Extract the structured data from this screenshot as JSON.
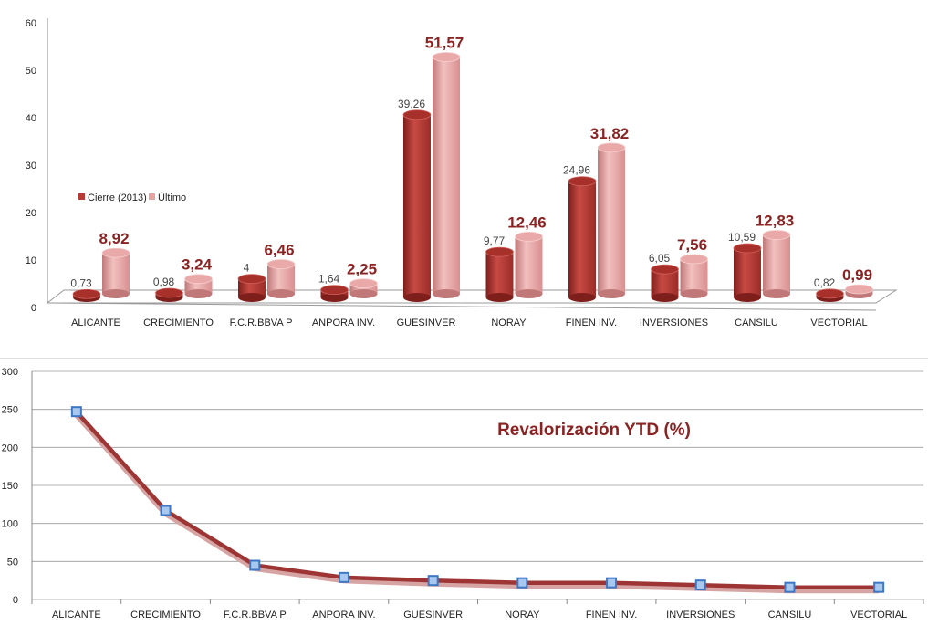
{
  "chart_data": [
    {
      "type": "bar",
      "title": "",
      "categories": [
        "ALICANTE",
        "CRECIMIENTO",
        "F.C.R.BBVA P",
        "ANPORA INV.",
        "GUESINVER",
        "NORAY",
        "FINEN INV.",
        "INVERSIONES",
        "CANSILU",
        "VECTORIAL"
      ],
      "series": [
        {
          "name": "Cierre (2013)",
          "color": "#b83a36",
          "values": [
            0.73,
            0.98,
            4,
            1.64,
            39.26,
            9.77,
            24.96,
            6.05,
            10.59,
            0.82
          ],
          "labels": [
            "0,73",
            "0,98",
            "4",
            "1,64",
            "39,26",
            "9,77",
            "24,96",
            "6,05",
            "10,59",
            "0,82"
          ]
        },
        {
          "name": "Último",
          "color": "#e7a2a2",
          "values": [
            8.92,
            3.24,
            6.46,
            2.25,
            51.57,
            12.46,
            31.82,
            7.56,
            12.83,
            0.99
          ],
          "labels": [
            "8,92",
            "3,24",
            "6,46",
            "2,25",
            "51,57",
            "12,46",
            "31,82",
            "7,56",
            "12,83",
            "0,99"
          ]
        }
      ],
      "ylim": [
        0,
        60
      ],
      "yticks": [
        "0",
        "10",
        "20",
        "30",
        "40",
        "50",
        "60"
      ],
      "legend": "left",
      "grid": false
    },
    {
      "type": "line",
      "title": "Revalorización YTD  (%)",
      "categories": [
        "ALICANTE",
        "CRECIMIENTO",
        "F.C.R.BBVA P",
        "ANPORA INV.",
        "GUESINVER",
        "NORAY",
        "FINEN INV.",
        "INVERSIONES",
        "CANSILU",
        "VECTORIAL"
      ],
      "series": [
        {
          "name": "Revalorización YTD (%)",
          "line_color": "#9e3535",
          "marker_color": "#3e78c4",
          "values": [
            247,
            117,
            45,
            29,
            25,
            22,
            22,
            19,
            16,
            16
          ]
        }
      ],
      "ylim": [
        0,
        300
      ],
      "yticks": [
        "0",
        "50",
        "100",
        "150",
        "200",
        "250",
        "300"
      ],
      "grid": true
    }
  ]
}
